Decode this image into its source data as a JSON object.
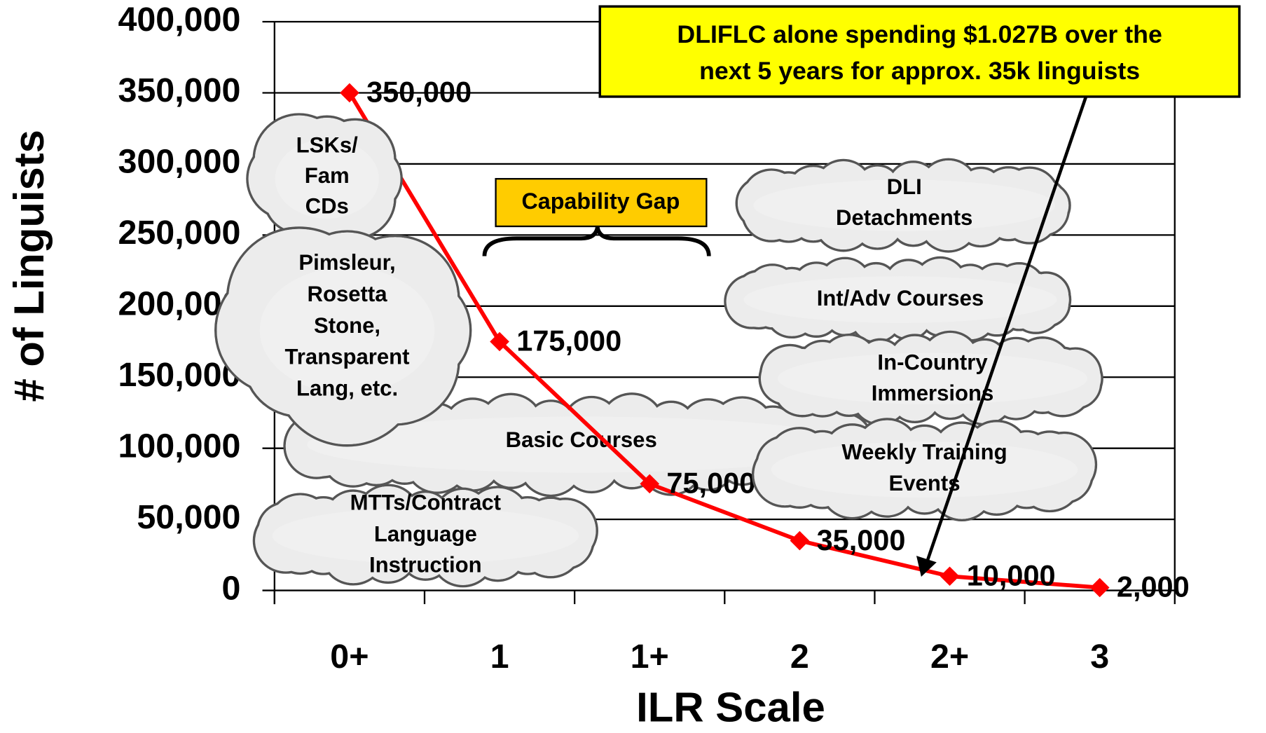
{
  "chart_data": {
    "type": "line",
    "x_label": "ILR Scale",
    "y_label": "# of Linguists",
    "categories": [
      "0+",
      "1",
      "1+",
      "2",
      "2+",
      "3"
    ],
    "series": [
      {
        "name": "Linguists",
        "color": "#ff0000",
        "values": [
          350000,
          175000,
          75000,
          35000,
          10000,
          2000
        ],
        "value_labels": [
          "350,000",
          "175,000",
          "75,000",
          "35,000",
          "10,000",
          "2,000"
        ]
      }
    ],
    "ylim": [
      0,
      400000
    ],
    "yticks": [
      0,
      {
        "value": 50000,
        "label": "50,000"
      },
      {
        "value": 100000,
        "label": "100,000"
      },
      {
        "value": 150000,
        "label": "150,000"
      },
      {
        "value": 200000,
        "label": "200,000"
      },
      {
        "value": 250000,
        "label": "250,000"
      },
      {
        "value": 300000,
        "label": "300,000"
      },
      {
        "value": 350000,
        "label": "350,000"
      },
      {
        "value": 400000,
        "label": "400,000"
      }
    ],
    "grid": true,
    "annotations": {
      "callout": [
        "DLIFLC alone spending $1.027B over the",
        "next 5 years for approx. 35k linguists"
      ],
      "capability_gap": "Capability Gap",
      "clouds": [
        [
          "Basic Courses"
        ],
        [
          "MTTs/Contract",
          "Language",
          "Instruction"
        ],
        [
          "DLI",
          "Detachments"
        ],
        [
          "Int/Adv Courses"
        ],
        [
          "In-Country",
          "Immersions"
        ],
        [
          "Weekly Training",
          "Events"
        ],
        [
          "LSKs/",
          "Fam",
          "CDs"
        ],
        [
          "Pimsleur,",
          "Rosetta",
          "Stone,",
          "Transparent",
          "Lang, etc."
        ]
      ]
    }
  }
}
